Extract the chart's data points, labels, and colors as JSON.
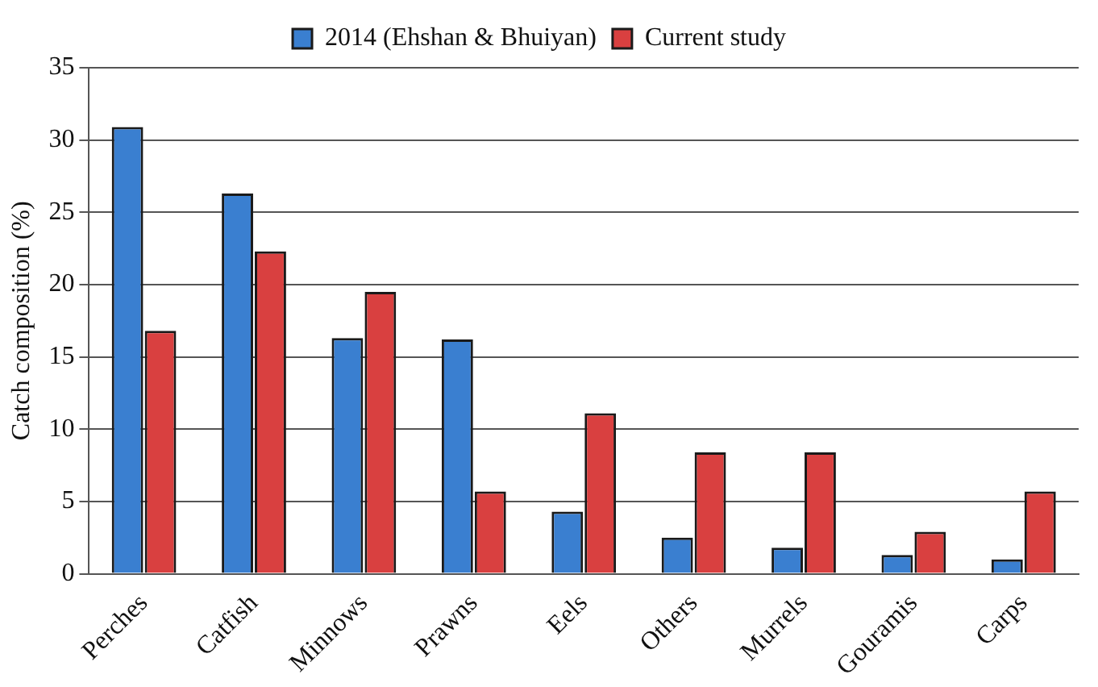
{
  "chart_data": {
    "type": "bar",
    "ylabel": "Catch composition (%)",
    "categories": [
      "Perches",
      "Catfish",
      "Minnows",
      "Prawns",
      "Eels",
      "Others",
      "Murrels",
      "Gouramis",
      "Carps"
    ],
    "series": [
      {
        "name": "2014 (Ehshan & Bhuiyan)",
        "color": "#3a7fd0",
        "values": [
          30.9,
          26.3,
          16.3,
          16.2,
          4.3,
          2.5,
          1.8,
          1.3,
          1.0
        ]
      },
      {
        "name": "Current study",
        "color": "#d94040",
        "values": [
          16.8,
          22.3,
          19.5,
          5.7,
          11.1,
          8.4,
          8.4,
          2.9,
          5.7
        ]
      }
    ],
    "ylim": [
      0,
      35
    ],
    "yticks": [
      0,
      5,
      10,
      15,
      20,
      25,
      30,
      35
    ],
    "grid": "y",
    "legend": "top"
  }
}
